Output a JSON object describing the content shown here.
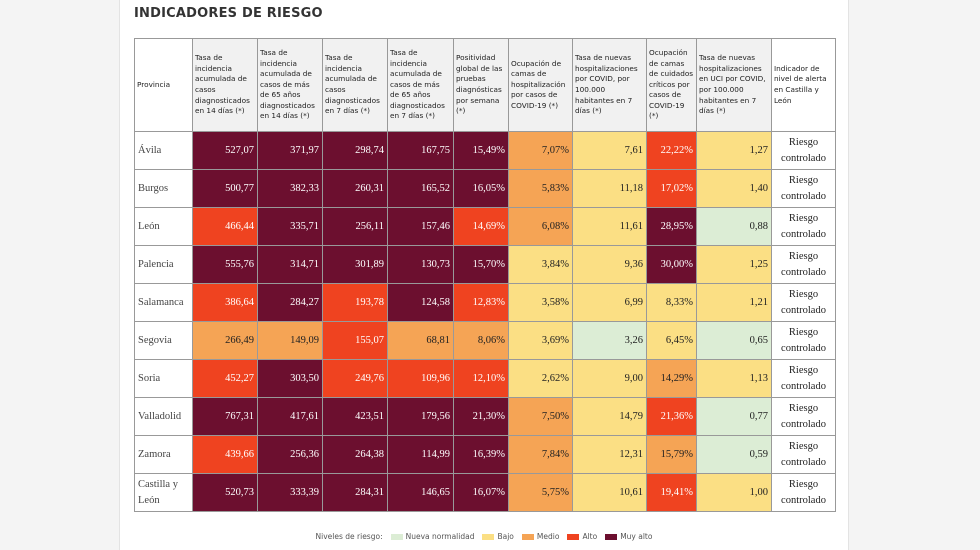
{
  "title": "INDICADORES DE RIESGO",
  "table": {
    "headers": [
      "Provincia",
      "Tasa de incidencia acumulada de casos diagnosticados en 14 días (*)",
      "Tasa de incidencia acumulada de casos de más de 65 años diagnosticados en 14 días (*)",
      "Tasa de incidencia acumulada de casos diagnosticados en 7 días (*)",
      "Tasa de incidencia acumulada de casos de más de 65 años diagnosticados en 7 días (*)",
      "Positividad global de las pruebas diagnósticas por semana (*)",
      "Ocupación de camas de hospitalización por casos de COVID-19 (*)",
      "Tasa de nuevas hospitalizaciones por COVID, por 100.000 habitantes en 7 días (*)",
      "Ocupación de camas de cuidados críticos por casos de COVID-19 (*)",
      "Tasa de nuevas hospitalizaciones en UCI por COVID, por 100.000 habitantes en 7 días (*)",
      "Indicador de nivel de alerta en Castilla y León"
    ],
    "rows": [
      [
        "Ávila",
        "527,07",
        "371,97",
        "298,74",
        "167,75",
        "15,49%",
        "7,07%",
        "7,61",
        "22,22%",
        "1,27",
        "Riesgo controlado"
      ],
      [
        "Burgos",
        "500,77",
        "382,33",
        "260,31",
        "165,52",
        "16,05%",
        "5,83%",
        "11,18",
        "17,02%",
        "1,40",
        "Riesgo controlado"
      ],
      [
        "León",
        "466,44",
        "335,71",
        "256,11",
        "157,46",
        "14,69%",
        "6,08%",
        "11,61",
        "28,95%",
        "0,88",
        "Riesgo controlado"
      ],
      [
        "Palencia",
        "555,76",
        "314,71",
        "301,89",
        "130,73",
        "15,70%",
        "3,84%",
        "9,36",
        "30,00%",
        "1,25",
        "Riesgo controlado"
      ],
      [
        "Salamanca",
        "386,64",
        "284,27",
        "193,78",
        "124,58",
        "12,83%",
        "3,58%",
        "6,99",
        "8,33%",
        "1,21",
        "Riesgo controlado"
      ],
      [
        "Segovia",
        "266,49",
        "149,09",
        "155,07",
        "68,81",
        "8,06%",
        "3,69%",
        "3,26",
        "6,45%",
        "0,65",
        "Riesgo controlado"
      ],
      [
        "Soria",
        "452,27",
        "303,50",
        "249,76",
        "109,96",
        "12,10%",
        "2,62%",
        "9,00",
        "14,29%",
        "1,13",
        "Riesgo controlado"
      ],
      [
        "Valladolid",
        "767,31",
        "417,61",
        "423,51",
        "179,56",
        "21,30%",
        "7,50%",
        "14,79",
        "21,36%",
        "0,77",
        "Riesgo controlado"
      ],
      [
        "Zamora",
        "439,66",
        "256,36",
        "264,38",
        "114,99",
        "16,39%",
        "7,84%",
        "12,31",
        "15,79%",
        "0,59",
        "Riesgo controlado"
      ],
      [
        "Castilla y León",
        "520,73",
        "333,39",
        "284,31",
        "146,65",
        "16,07%",
        "5,75%",
        "10,61",
        "19,41%",
        "1,00",
        "Riesgo controlado"
      ]
    ],
    "levels": [
      [
        null,
        4,
        4,
        4,
        4,
        4,
        2,
        1,
        3,
        1,
        null
      ],
      [
        null,
        4,
        4,
        4,
        4,
        4,
        2,
        1,
        3,
        1,
        null
      ],
      [
        null,
        3,
        4,
        4,
        4,
        3,
        2,
        1,
        4,
        0,
        null
      ],
      [
        null,
        4,
        4,
        4,
        4,
        4,
        1,
        1,
        4,
        1,
        null
      ],
      [
        null,
        3,
        4,
        3,
        4,
        3,
        1,
        1,
        1,
        1,
        null
      ],
      [
        null,
        2,
        2,
        3,
        2,
        2,
        1,
        0,
        1,
        0,
        null
      ],
      [
        null,
        3,
        4,
        3,
        3,
        3,
        1,
        1,
        2,
        1,
        null
      ],
      [
        null,
        4,
        4,
        4,
        4,
        4,
        2,
        1,
        3,
        0,
        null
      ],
      [
        null,
        3,
        4,
        4,
        4,
        4,
        2,
        1,
        2,
        0,
        null
      ],
      [
        null,
        4,
        4,
        4,
        4,
        4,
        2,
        1,
        3,
        1,
        null
      ]
    ]
  },
  "legend": {
    "label": "Niveles de riesgo:",
    "items": [
      {
        "label": "Nueva normalidad",
        "color": "#dcedd5"
      },
      {
        "label": "Bajo",
        "color": "#fbdf84"
      },
      {
        "label": "Medio",
        "color": "#f5a455"
      },
      {
        "label": "Alto",
        "color": "#ef4320"
      },
      {
        "label": "Muy alto",
        "color": "#6c0f2f"
      }
    ]
  }
}
